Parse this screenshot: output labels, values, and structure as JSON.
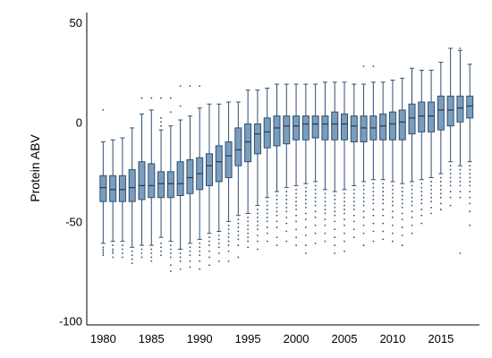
{
  "chart_data": {
    "type": "box",
    "title": "",
    "xlabel": "",
    "ylabel": "Protein ABV",
    "ylim": [
      -102,
      55
    ],
    "xlim": [
      1978.3,
      2019.0
    ],
    "x_ticks": [
      1980,
      1985,
      1990,
      1995,
      2000,
      2005,
      2010,
      2015
    ],
    "y_ticks": [
      50,
      0,
      -50,
      -100
    ],
    "grid": false,
    "legend": "none",
    "box_fill": "#7b9dbd",
    "box_stroke": "#2e4e6e",
    "boxes": [
      {
        "x": 1980,
        "q1": -40,
        "median": -33,
        "q3": -27,
        "whisker_low": -61,
        "whisker_high": -10,
        "outliers": [
          6,
          -63,
          -64,
          -65,
          -66,
          -67
        ]
      },
      {
        "x": 1981,
        "q1": -40,
        "median": -34,
        "q3": -27,
        "whisker_low": -60,
        "whisker_high": -9,
        "outliers": [
          -62,
          -64,
          -65,
          -66,
          -68
        ]
      },
      {
        "x": 1982,
        "q1": -40,
        "median": -34,
        "q3": -27,
        "whisker_low": -60,
        "whisker_high": -8,
        "outliers": [
          -62,
          -64,
          -66,
          -68
        ]
      },
      {
        "x": 1983,
        "q1": -40,
        "median": -33,
        "q3": -24,
        "whisker_low": -63,
        "whisker_high": -3,
        "outliers": [
          -65,
          -67,
          -69,
          -71
        ]
      },
      {
        "x": 1984,
        "q1": -39,
        "median": -32,
        "q3": -20,
        "whisker_low": -62,
        "whisker_high": 4,
        "outliers": [
          12,
          -64,
          -66,
          -68
        ]
      },
      {
        "x": 1985,
        "q1": -38,
        "median": -32,
        "q3": -21,
        "whisker_low": -62,
        "whisker_high": 6,
        "outliers": [
          12,
          -64,
          -66,
          -68,
          -70
        ]
      },
      {
        "x": 1986,
        "q1": -38,
        "median": -31,
        "q3": -25,
        "whisker_low": -58,
        "whisker_high": -4,
        "outliers": [
          12,
          2,
          0,
          -2,
          -61,
          -63,
          -65,
          -67
        ]
      },
      {
        "x": 1987,
        "q1": -38,
        "median": -31,
        "q3": -25,
        "whisker_low": -60,
        "whisker_high": -2,
        "outliers": [
          12,
          5,
          -62,
          -64,
          -66,
          -68,
          -72,
          -75
        ]
      },
      {
        "x": 1988,
        "q1": -37,
        "median": -31,
        "q3": -20,
        "whisker_low": -64,
        "whisker_high": 1,
        "outliers": [
          18,
          8,
          -66,
          -68,
          -70,
          -74
        ]
      },
      {
        "x": 1989,
        "q1": -36,
        "median": -28,
        "q3": -19,
        "whisker_low": -61,
        "whisker_high": 3,
        "outliers": [
          18,
          -63,
          -65,
          -67,
          -70,
          -73
        ]
      },
      {
        "x": 1990,
        "q1": -34,
        "median": -26,
        "q3": -18,
        "whisker_low": -59,
        "whisker_high": 7,
        "outliers": [
          18,
          -61,
          -63,
          -65,
          -67,
          -70,
          -74
        ]
      },
      {
        "x": 1991,
        "q1": -32,
        "median": -22,
        "q3": -16,
        "whisker_low": -56,
        "whisker_high": 9,
        "outliers": [
          -58,
          -60,
          -62,
          -65,
          -68,
          -72
        ]
      },
      {
        "x": 1992,
        "q1": -30,
        "median": -20,
        "q3": -12,
        "whisker_low": -55,
        "whisker_high": 9,
        "outliers": [
          -57,
          -59,
          -61,
          -63,
          -66,
          -70
        ]
      },
      {
        "x": 1993,
        "q1": -28,
        "median": -17,
        "q3": -10,
        "whisker_low": -50,
        "whisker_high": 10,
        "outliers": [
          -52,
          -54,
          -56,
          -58,
          -60,
          -62,
          -65,
          -70
        ]
      },
      {
        "x": 1994,
        "q1": -22,
        "median": -14,
        "q3": -3,
        "whisker_low": -47,
        "whisker_high": 10,
        "outliers": [
          -49,
          -51,
          -53,
          -55,
          -57,
          -59,
          -62,
          -68
        ]
      },
      {
        "x": 1995,
        "q1": -20,
        "median": -10,
        "q3": -1,
        "whisker_low": -46,
        "whisker_high": 16,
        "outliers": [
          -48,
          -50,
          -52,
          -54,
          -56,
          -58,
          -60,
          -63
        ]
      },
      {
        "x": 1996,
        "q1": -16,
        "median": -6,
        "q3": -1,
        "whisker_low": -42,
        "whisker_high": 16,
        "outliers": [
          -44,
          -46,
          -48,
          -50,
          -52,
          -54,
          -57,
          -60,
          -64
        ]
      },
      {
        "x": 1997,
        "q1": -13,
        "median": -5,
        "q3": 2,
        "whisker_low": -38,
        "whisker_high": 17,
        "outliers": [
          -40,
          -42,
          -44,
          -46,
          -48,
          -50,
          -53,
          -56,
          -60
        ]
      },
      {
        "x": 1998,
        "q1": -12,
        "median": -3,
        "q3": 3,
        "whisker_low": -35,
        "whisker_high": 19,
        "outliers": [
          -37,
          -39,
          -41,
          -43,
          -45,
          -47,
          -50,
          -53,
          -58,
          -62
        ]
      },
      {
        "x": 1999,
        "q1": -11,
        "median": -2,
        "q3": 3,
        "whisker_low": -33,
        "whisker_high": 19,
        "outliers": [
          -35,
          -37,
          -39,
          -41,
          -43,
          -45,
          -48,
          -51,
          -55,
          -60
        ]
      },
      {
        "x": 2000,
        "q1": -9,
        "median": -2,
        "q3": 3,
        "whisker_low": -32,
        "whisker_high": 19,
        "outliers": [
          -34,
          -36,
          -38,
          -40,
          -42,
          -44,
          -47,
          -50,
          -54,
          -58,
          -62
        ]
      },
      {
        "x": 2001,
        "q1": -9,
        "median": -1,
        "q3": 3,
        "whisker_low": -31,
        "whisker_high": 19,
        "outliers": [
          -33,
          -35,
          -37,
          -39,
          -41,
          -43,
          -46,
          -49,
          -53,
          -57,
          -62,
          -66
        ]
      },
      {
        "x": 2002,
        "q1": -8,
        "median": -1,
        "q3": 3,
        "whisker_low": -30,
        "whisker_high": 19,
        "outliers": [
          -32,
          -34,
          -36,
          -38,
          -40,
          -42,
          -45,
          -48,
          -52,
          -56,
          -61
        ]
      },
      {
        "x": 2003,
        "q1": -9,
        "median": -1,
        "q3": 3,
        "whisker_low": -34,
        "whisker_high": 20,
        "outliers": [
          -36,
          -38,
          -40,
          -42,
          -44,
          -46,
          -49,
          -52,
          -56,
          -60
        ]
      },
      {
        "x": 2004,
        "q1": -9,
        "median": -1,
        "q3": 5,
        "whisker_low": -35,
        "whisker_high": 20,
        "outliers": [
          -37,
          -39,
          -41,
          -43,
          -45,
          -47,
          -50,
          -54,
          -58,
          -62,
          -66
        ]
      },
      {
        "x": 2005,
        "q1": -9,
        "median": -1,
        "q3": 4,
        "whisker_low": -34,
        "whisker_high": 20,
        "outliers": [
          -36,
          -38,
          -40,
          -42,
          -44,
          -46,
          -49,
          -52,
          -56,
          -60,
          -65
        ]
      },
      {
        "x": 2006,
        "q1": -10,
        "median": -2,
        "q3": 3,
        "whisker_low": -32,
        "whisker_high": 19,
        "outliers": [
          -34,
          -36,
          -38,
          -40,
          -42,
          -44,
          -47,
          -50,
          -54,
          -58
        ]
      },
      {
        "x": 2007,
        "q1": -10,
        "median": -3,
        "q3": 3,
        "whisker_low": -30,
        "whisker_high": 19,
        "outliers": [
          28,
          -32,
          -34,
          -36,
          -38,
          -40,
          -42,
          -45,
          -48,
          -52,
          -56,
          -62
        ]
      },
      {
        "x": 2008,
        "q1": -9,
        "median": -3,
        "q3": 3,
        "whisker_low": -29,
        "whisker_high": 20,
        "outliers": [
          28,
          -31,
          -33,
          -35,
          -37,
          -39,
          -41,
          -44,
          -47,
          -51,
          -55,
          -60
        ]
      },
      {
        "x": 2009,
        "q1": -9,
        "median": -2,
        "q3": 4,
        "whisker_low": -29,
        "whisker_high": 20,
        "outliers": [
          -31,
          -33,
          -35,
          -37,
          -39,
          -41,
          -44,
          -47,
          -51,
          -55,
          -59
        ]
      },
      {
        "x": 2010,
        "q1": -9,
        "median": -1,
        "q3": 5,
        "whisker_low": -30,
        "whisker_high": 21,
        "outliers": [
          -32,
          -34,
          -36,
          -38,
          -40,
          -42,
          -45,
          -48,
          -52,
          -56,
          -60
        ]
      },
      {
        "x": 2011,
        "q1": -9,
        "median": 0,
        "q3": 6,
        "whisker_low": -31,
        "whisker_high": 22,
        "outliers": [
          -33,
          -35,
          -37,
          -39,
          -41,
          -43,
          -46,
          -49,
          -53,
          -57,
          -62
        ]
      },
      {
        "x": 2012,
        "q1": -6,
        "median": 2,
        "q3": 9,
        "whisker_low": -30,
        "whisker_high": 27,
        "outliers": [
          -32,
          -34,
          -36,
          -38,
          -40,
          -42,
          -45,
          -48,
          -52,
          -56
        ]
      },
      {
        "x": 2013,
        "q1": -5,
        "median": 3,
        "q3": 10,
        "whisker_low": -29,
        "whisker_high": 26,
        "outliers": [
          -31,
          -33,
          -35,
          -37,
          -39,
          -41,
          -44,
          -47,
          -51
        ]
      },
      {
        "x": 2014,
        "q1": -5,
        "median": 3,
        "q3": 10,
        "whisker_low": -28,
        "whisker_high": 26,
        "outliers": [
          -30,
          -32,
          -34,
          -36,
          -38,
          -40,
          -43,
          -46
        ]
      },
      {
        "x": 2015,
        "q1": -4,
        "median": 6,
        "q3": 13,
        "whisker_low": -26,
        "whisker_high": 30,
        "outliers": [
          -28,
          -30,
          -32,
          -34,
          -36,
          -38,
          -41,
          -44
        ]
      },
      {
        "x": 2016,
        "q1": -2,
        "median": 6,
        "q3": 13,
        "whisker_low": -20,
        "whisker_high": 37,
        "outliers": [
          -22,
          -24,
          -26,
          -28,
          -30,
          -32,
          -35,
          -38,
          -42
        ]
      },
      {
        "x": 2017,
        "q1": 0,
        "median": 7,
        "q3": 13,
        "whisker_low": -22,
        "whisker_high": 36,
        "outliers": [
          37,
          -24,
          -26,
          -28,
          -30,
          -32,
          -35,
          -38,
          -66
        ]
      },
      {
        "x": 2018,
        "q1": 2,
        "median": 8,
        "q3": 13,
        "whisker_low": -20,
        "whisker_high": 29,
        "outliers": [
          -22,
          -24,
          -26,
          -28,
          -30,
          -32,
          -35,
          -38,
          -41,
          -45,
          -52
        ]
      }
    ]
  }
}
